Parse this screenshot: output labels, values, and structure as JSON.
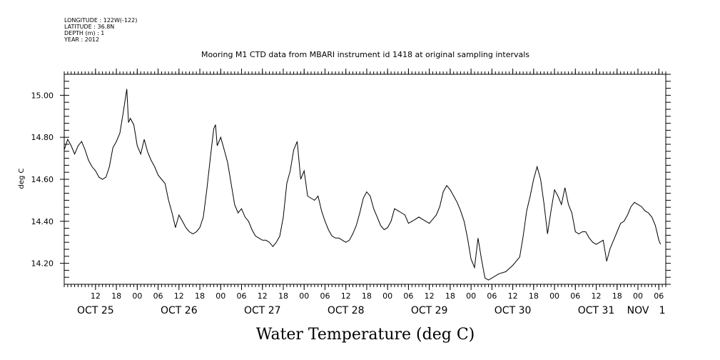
{
  "header": {
    "meta_lines": [
      "LONGITUDE : 122W(-122)",
      "LATITUDE : 36.8N",
      "DEPTH (m) : 1",
      "YEAR : 2012"
    ],
    "title": "Mooring M1 CTD data from MBARI instrument id 1418 at original sampling intervals"
  },
  "chart_data": {
    "type": "line",
    "title": "Mooring M1 CTD data from MBARI instrument id 1418 at original sampling intervals",
    "xlabel": "Water Temperature (deg C)",
    "ylabel": "deg C",
    "ylim": [
      14.1,
      15.1
    ],
    "xlim": [
      "2012-10-25T03:00",
      "2012-11-01T08:00"
    ],
    "y_ticks": [
      "14.20",
      "14.40",
      "14.60",
      "14.80",
      "15.00"
    ],
    "x_ticks": [
      {
        "t": "2012-10-25T12:00",
        "label": "12"
      },
      {
        "t": "2012-10-25T18:00",
        "label": "18"
      },
      {
        "t": "2012-10-26T00:00",
        "label": "00"
      },
      {
        "t": "2012-10-26T06:00",
        "label": "06"
      },
      {
        "t": "2012-10-26T12:00",
        "label": "12"
      },
      {
        "t": "2012-10-26T18:00",
        "label": "18"
      },
      {
        "t": "2012-10-27T00:00",
        "label": "00"
      },
      {
        "t": "2012-10-27T06:00",
        "label": "06"
      },
      {
        "t": "2012-10-27T12:00",
        "label": "12"
      },
      {
        "t": "2012-10-27T18:00",
        "label": "18"
      },
      {
        "t": "2012-10-28T00:00",
        "label": "00"
      },
      {
        "t": "2012-10-28T06:00",
        "label": "06"
      },
      {
        "t": "2012-10-28T12:00",
        "label": "12"
      },
      {
        "t": "2012-10-28T18:00",
        "label": "18"
      },
      {
        "t": "2012-10-29T00:00",
        "label": "00"
      },
      {
        "t": "2012-10-29T06:00",
        "label": "06"
      },
      {
        "t": "2012-10-29T12:00",
        "label": "12"
      },
      {
        "t": "2012-10-29T18:00",
        "label": "18"
      },
      {
        "t": "2012-10-30T00:00",
        "label": "00"
      },
      {
        "t": "2012-10-30T06:00",
        "label": "06"
      },
      {
        "t": "2012-10-30T12:00",
        "label": "12"
      },
      {
        "t": "2012-10-30T18:00",
        "label": "18"
      },
      {
        "t": "2012-10-31T00:00",
        "label": "00"
      },
      {
        "t": "2012-10-31T06:00",
        "label": "06"
      },
      {
        "t": "2012-10-31T12:00",
        "label": "12"
      },
      {
        "t": "2012-10-31T18:00",
        "label": "18"
      },
      {
        "t": "2012-11-01T00:00",
        "label": "00"
      },
      {
        "t": "2012-11-01T06:00",
        "label": "06"
      }
    ],
    "day_labels": [
      {
        "t": "2012-10-25T12:00",
        "label": "OCT 25"
      },
      {
        "t": "2012-10-26T12:00",
        "label": "OCT 26"
      },
      {
        "t": "2012-10-27T12:00",
        "label": "OCT 27"
      },
      {
        "t": "2012-10-28T12:00",
        "label": "OCT 28"
      },
      {
        "t": "2012-10-29T12:00",
        "label": "OCT 29"
      },
      {
        "t": "2012-10-30T12:00",
        "label": "OCT 30"
      },
      {
        "t": "2012-10-31T12:00",
        "label": "OCT 31"
      },
      {
        "t": "2012-11-01T00:00",
        "label": "NOV"
      },
      {
        "t": "2012-11-01T07:00",
        "label": "1"
      }
    ],
    "series": [
      {
        "points": [
          [
            "2012-10-25T03:00",
            14.74
          ],
          [
            "2012-10-25T04:00",
            14.79
          ],
          [
            "2012-10-25T05:00",
            14.76
          ],
          [
            "2012-10-25T06:00",
            14.72
          ],
          [
            "2012-10-25T07:00",
            14.76
          ],
          [
            "2012-10-25T08:00",
            14.78
          ],
          [
            "2012-10-25T09:00",
            14.74
          ],
          [
            "2012-10-25T10:00",
            14.69
          ],
          [
            "2012-10-25T11:00",
            14.66
          ],
          [
            "2012-10-25T12:00",
            14.64
          ],
          [
            "2012-10-25T13:00",
            14.61
          ],
          [
            "2012-10-25T14:00",
            14.6
          ],
          [
            "2012-10-25T15:00",
            14.61
          ],
          [
            "2012-10-25T16:00",
            14.66
          ],
          [
            "2012-10-25T17:00",
            14.75
          ],
          [
            "2012-10-25T18:00",
            14.78
          ],
          [
            "2012-10-25T19:00",
            14.82
          ],
          [
            "2012-10-25T20:00",
            14.92
          ],
          [
            "2012-10-25T21:00",
            15.03
          ],
          [
            "2012-10-25T21:30",
            14.87
          ],
          [
            "2012-10-25T22:00",
            14.89
          ],
          [
            "2012-10-25T23:00",
            14.86
          ],
          [
            "2012-10-26T00:00",
            14.76
          ],
          [
            "2012-10-26T01:00",
            14.72
          ],
          [
            "2012-10-26T02:00",
            14.79
          ],
          [
            "2012-10-26T03:00",
            14.73
          ],
          [
            "2012-10-26T04:00",
            14.69
          ],
          [
            "2012-10-26T05:00",
            14.66
          ],
          [
            "2012-10-26T06:00",
            14.62
          ],
          [
            "2012-10-26T07:00",
            14.6
          ],
          [
            "2012-10-26T08:00",
            14.58
          ],
          [
            "2012-10-26T09:00",
            14.5
          ],
          [
            "2012-10-26T10:00",
            14.44
          ],
          [
            "2012-10-26T11:00",
            14.37
          ],
          [
            "2012-10-26T12:00",
            14.43
          ],
          [
            "2012-10-26T13:00",
            14.4
          ],
          [
            "2012-10-26T14:00",
            14.37
          ],
          [
            "2012-10-26T15:00",
            14.35
          ],
          [
            "2012-10-26T16:00",
            14.34
          ],
          [
            "2012-10-26T17:00",
            14.35
          ],
          [
            "2012-10-26T18:00",
            14.37
          ],
          [
            "2012-10-26T19:00",
            14.42
          ],
          [
            "2012-10-26T20:00",
            14.55
          ],
          [
            "2012-10-26T21:00",
            14.7
          ],
          [
            "2012-10-26T22:00",
            14.84
          ],
          [
            "2012-10-26T22:30",
            14.86
          ],
          [
            "2012-10-26T23:00",
            14.76
          ],
          [
            "2012-10-27T00:00",
            14.8
          ],
          [
            "2012-10-27T01:00",
            14.74
          ],
          [
            "2012-10-27T02:00",
            14.68
          ],
          [
            "2012-10-27T03:00",
            14.58
          ],
          [
            "2012-10-27T04:00",
            14.48
          ],
          [
            "2012-10-27T05:00",
            14.44
          ],
          [
            "2012-10-27T06:00",
            14.46
          ],
          [
            "2012-10-27T07:00",
            14.42
          ],
          [
            "2012-10-27T08:00",
            14.4
          ],
          [
            "2012-10-27T09:00",
            14.36
          ],
          [
            "2012-10-27T10:00",
            14.33
          ],
          [
            "2012-10-27T11:00",
            14.32
          ],
          [
            "2012-10-27T12:00",
            14.31
          ],
          [
            "2012-10-27T13:00",
            14.31
          ],
          [
            "2012-10-27T14:00",
            14.3
          ],
          [
            "2012-10-27T15:00",
            14.28
          ],
          [
            "2012-10-27T16:00",
            14.3
          ],
          [
            "2012-10-27T17:00",
            14.33
          ],
          [
            "2012-10-27T18:00",
            14.42
          ],
          [
            "2012-10-27T19:00",
            14.58
          ],
          [
            "2012-10-27T20:00",
            14.64
          ],
          [
            "2012-10-27T21:00",
            14.74
          ],
          [
            "2012-10-27T22:00",
            14.78
          ],
          [
            "2012-10-27T23:00",
            14.6
          ],
          [
            "2012-10-28T00:00",
            14.64
          ],
          [
            "2012-10-28T01:00",
            14.52
          ],
          [
            "2012-10-28T02:00",
            14.51
          ],
          [
            "2012-10-28T03:00",
            14.5
          ],
          [
            "2012-10-28T04:00",
            14.52
          ],
          [
            "2012-10-28T05:00",
            14.45
          ],
          [
            "2012-10-28T06:00",
            14.4
          ],
          [
            "2012-10-28T07:00",
            14.36
          ],
          [
            "2012-10-28T08:00",
            14.33
          ],
          [
            "2012-10-28T09:00",
            14.32
          ],
          [
            "2012-10-28T10:00",
            14.32
          ],
          [
            "2012-10-28T11:00",
            14.31
          ],
          [
            "2012-10-28T12:00",
            14.3
          ],
          [
            "2012-10-28T13:00",
            14.31
          ],
          [
            "2012-10-28T14:00",
            14.34
          ],
          [
            "2012-10-28T15:00",
            14.38
          ],
          [
            "2012-10-28T16:00",
            14.44
          ],
          [
            "2012-10-28T17:00",
            14.51
          ],
          [
            "2012-10-28T18:00",
            14.54
          ],
          [
            "2012-10-28T19:00",
            14.52
          ],
          [
            "2012-10-28T20:00",
            14.46
          ],
          [
            "2012-10-28T21:00",
            14.42
          ],
          [
            "2012-10-28T22:00",
            14.38
          ],
          [
            "2012-10-28T23:00",
            14.36
          ],
          [
            "2012-10-29T00:00",
            14.37
          ],
          [
            "2012-10-29T01:00",
            14.4
          ],
          [
            "2012-10-29T02:00",
            14.46
          ],
          [
            "2012-10-29T03:00",
            14.45
          ],
          [
            "2012-10-29T04:00",
            14.44
          ],
          [
            "2012-10-29T05:00",
            14.43
          ],
          [
            "2012-10-29T06:00",
            14.39
          ],
          [
            "2012-10-29T07:00",
            14.4
          ],
          [
            "2012-10-29T08:00",
            14.41
          ],
          [
            "2012-10-29T09:00",
            14.42
          ],
          [
            "2012-10-29T10:00",
            14.41
          ],
          [
            "2012-10-29T11:00",
            14.4
          ],
          [
            "2012-10-29T12:00",
            14.39
          ],
          [
            "2012-10-29T13:00",
            14.41
          ],
          [
            "2012-10-29T14:00",
            14.43
          ],
          [
            "2012-10-29T15:00",
            14.47
          ],
          [
            "2012-10-29T16:00",
            14.54
          ],
          [
            "2012-10-29T17:00",
            14.57
          ],
          [
            "2012-10-29T18:00",
            14.55
          ],
          [
            "2012-10-29T19:00",
            14.52
          ],
          [
            "2012-10-29T20:00",
            14.49
          ],
          [
            "2012-10-29T21:00",
            14.45
          ],
          [
            "2012-10-29T22:00",
            14.4
          ],
          [
            "2012-10-29T23:00",
            14.32
          ],
          [
            "2012-10-30T00:00",
            14.22
          ],
          [
            "2012-10-30T01:00",
            14.18
          ],
          [
            "2012-10-30T02:00",
            14.32
          ],
          [
            "2012-10-30T03:00",
            14.22
          ],
          [
            "2012-10-30T04:00",
            14.13
          ],
          [
            "2012-10-30T05:00",
            14.12
          ],
          [
            "2012-10-30T06:00",
            14.13
          ],
          [
            "2012-10-30T08:00",
            14.15
          ],
          [
            "2012-10-30T10:00",
            14.16
          ],
          [
            "2012-10-30T12:00",
            14.19
          ],
          [
            "2012-10-30T14:00",
            14.23
          ],
          [
            "2012-10-30T15:00",
            14.33
          ],
          [
            "2012-10-30T16:00",
            14.45
          ],
          [
            "2012-10-30T17:00",
            14.52
          ],
          [
            "2012-10-30T18:00",
            14.6
          ],
          [
            "2012-10-30T19:00",
            14.66
          ],
          [
            "2012-10-30T20:00",
            14.6
          ],
          [
            "2012-10-30T21:00",
            14.48
          ],
          [
            "2012-10-30T22:00",
            14.34
          ],
          [
            "2012-10-30T23:00",
            14.45
          ],
          [
            "2012-10-31T00:00",
            14.55
          ],
          [
            "2012-10-31T01:00",
            14.52
          ],
          [
            "2012-10-31T02:00",
            14.48
          ],
          [
            "2012-10-31T03:00",
            14.56
          ],
          [
            "2012-10-31T04:00",
            14.48
          ],
          [
            "2012-10-31T05:00",
            14.44
          ],
          [
            "2012-10-31T06:00",
            14.35
          ],
          [
            "2012-10-31T07:00",
            14.34
          ],
          [
            "2012-10-31T08:00",
            14.35
          ],
          [
            "2012-10-31T09:00",
            14.35
          ],
          [
            "2012-10-31T10:00",
            14.32
          ],
          [
            "2012-10-31T11:00",
            14.3
          ],
          [
            "2012-10-31T12:00",
            14.29
          ],
          [
            "2012-10-31T13:00",
            14.3
          ],
          [
            "2012-10-31T14:00",
            14.31
          ],
          [
            "2012-10-31T15:00",
            14.21
          ],
          [
            "2012-10-31T16:00",
            14.27
          ],
          [
            "2012-10-31T17:00",
            14.31
          ],
          [
            "2012-10-31T18:00",
            14.35
          ],
          [
            "2012-10-31T19:00",
            14.39
          ],
          [
            "2012-10-31T20:00",
            14.4
          ],
          [
            "2012-10-31T21:00",
            14.43
          ],
          [
            "2012-10-31T22:00",
            14.47
          ],
          [
            "2012-10-31T23:00",
            14.49
          ],
          [
            "2012-11-01T00:00",
            14.48
          ],
          [
            "2012-11-01T01:00",
            14.47
          ],
          [
            "2012-11-01T02:00",
            14.45
          ],
          [
            "2012-11-01T03:00",
            14.44
          ],
          [
            "2012-11-01T04:00",
            14.42
          ],
          [
            "2012-11-01T05:00",
            14.38
          ],
          [
            "2012-11-01T06:00",
            14.31
          ],
          [
            "2012-11-01T06:30",
            14.29
          ]
        ]
      }
    ],
    "grid": false,
    "legend": "none",
    "line_color": "#000000"
  }
}
